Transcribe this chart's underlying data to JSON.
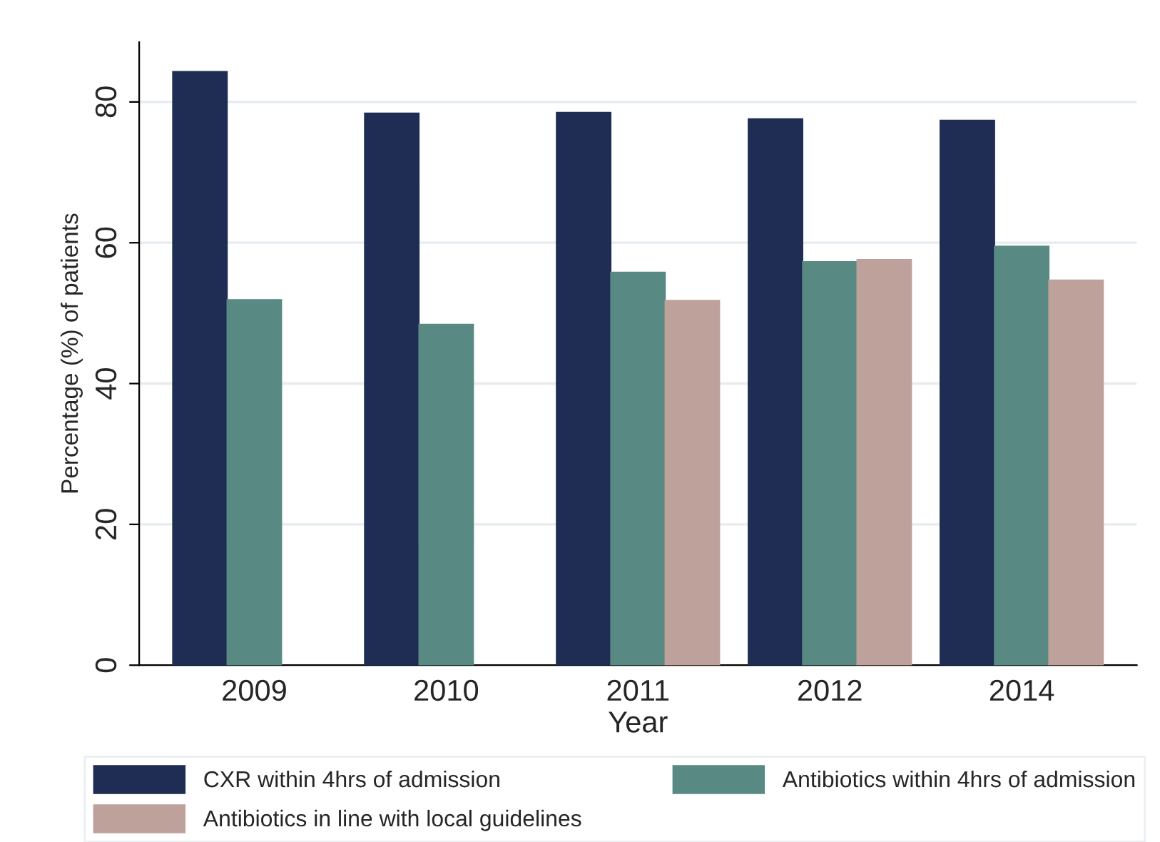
{
  "chart_data": {
    "type": "bar",
    "xlabel": "Year",
    "ylabel": "Percentage (%) of patients",
    "categories": [
      "2009",
      "2010",
      "2011",
      "2012",
      "2014"
    ],
    "series": [
      {
        "name": "CXR within 4hrs of admission",
        "color": "#1f2d54",
        "values": [
          84.3,
          78.4,
          78.5,
          77.6,
          77.4
        ]
      },
      {
        "name": "Antibiotics within 4hrs of admission",
        "color": "#588a83",
        "values": [
          51.9,
          48.4,
          55.8,
          57.3,
          59.5
        ]
      },
      {
        "name": "Antibiotics in line with local guidelines",
        "color": "#bea19b",
        "values": [
          null,
          null,
          51.8,
          57.6,
          54.7
        ]
      }
    ],
    "ylim": [
      0,
      88.5
    ],
    "yticks": [
      0,
      20,
      40,
      60,
      80
    ],
    "grid": "y",
    "legend": "bottom"
  }
}
